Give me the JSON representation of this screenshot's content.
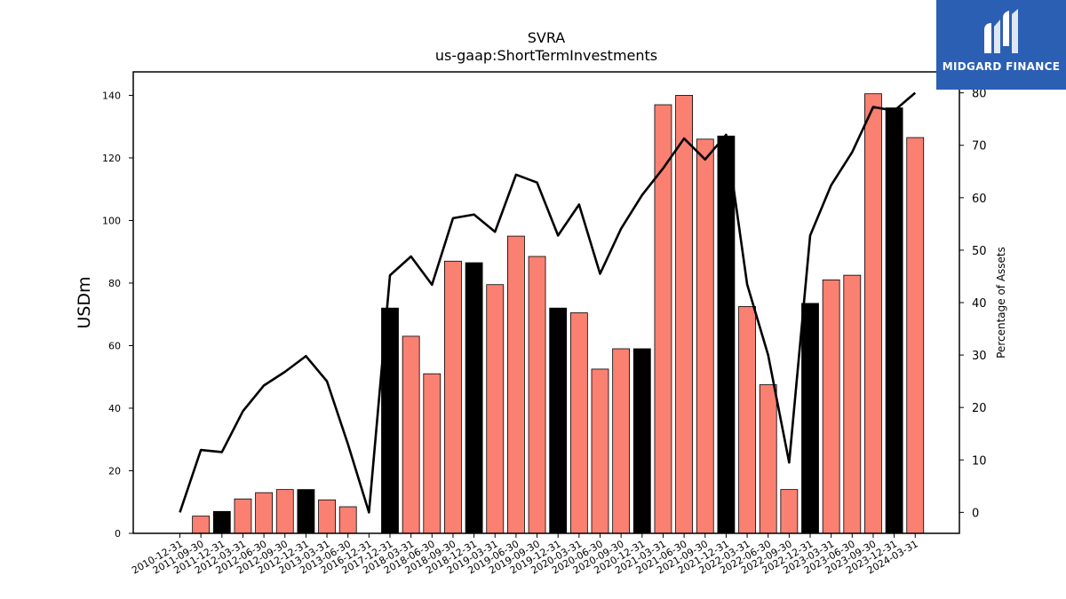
{
  "chart_data": {
    "type": "bar",
    "title": "SVRA",
    "subtitle": "us-gaap:ShortTermInvestments",
    "ylabel": "USDm",
    "ylabel_right": "Percentage of Assets",
    "ylim": [
      0,
      147.5
    ],
    "ylim_right": [
      -4,
      84
    ],
    "yticks": [
      "0",
      "20",
      "40",
      "60",
      "80",
      "100",
      "120",
      "140"
    ],
    "yticks_right": [
      "0",
      "10",
      "20",
      "30",
      "40",
      "50",
      "60",
      "70",
      "80"
    ],
    "bar_color": "#fa8072",
    "highlight_color": "#000000",
    "line_color": "#000000",
    "categories": [
      "2010-12-31",
      "2011-09-30",
      "2011-12-31",
      "2012-03-31",
      "2012-06-30",
      "2012-09-30",
      "2012-12-31",
      "2013-03-31",
      "2013-06-30",
      "2016-12-31",
      "2017-12-31",
      "2018-03-31",
      "2018-06-30",
      "2018-09-30",
      "2018-12-31",
      "2019-03-31",
      "2019-06-30",
      "2019-09-30",
      "2019-12-31",
      "2020-03-31",
      "2020-06-30",
      "2020-09-30",
      "2020-12-31",
      "2021-03-31",
      "2021-06-30",
      "2021-09-30",
      "2021-12-31",
      "2022-03-31",
      "2022-06-30",
      "2022-09-30",
      "2022-12-31",
      "2023-03-31",
      "2023-06-30",
      "2023-09-30",
      "2023-12-31",
      "2024-03-31"
    ],
    "series": [
      {
        "values": [
          0,
          5.5,
          7,
          11,
          13,
          14,
          14,
          10.7,
          8.5,
          0,
          72,
          63,
          51,
          87,
          86.5,
          79.5,
          95,
          88.5,
          72,
          70.5,
          52.5,
          59,
          59,
          137,
          140,
          126,
          127,
          72.5,
          47.5,
          14,
          73.5,
          81,
          82.5,
          140.5,
          136,
          126.5
        ],
        "highlight": [
          false,
          false,
          true,
          false,
          false,
          false,
          true,
          false,
          false,
          false,
          true,
          false,
          false,
          false,
          true,
          false,
          false,
          false,
          true,
          false,
          false,
          false,
          true,
          false,
          false,
          false,
          true,
          false,
          false,
          false,
          true,
          false,
          false,
          false,
          true,
          false
        ]
      },
      {
        "values": [
          0,
          11.9,
          11.5,
          19.3,
          24.2,
          26.8,
          29.8,
          25,
          13,
          0,
          45.2,
          48.8,
          43.4,
          56.1,
          56.8,
          53.5,
          64.4,
          62.9,
          52.8,
          58.7,
          45.5,
          54.1,
          60.5,
          65.6,
          71.3,
          67.3,
          72,
          43.5,
          30,
          9.5,
          52.8,
          62.4,
          68.7,
          77.3,
          76.6,
          80
        ]
      }
    ]
  },
  "logo": {
    "text": "MIDGARD FINANCE"
  }
}
